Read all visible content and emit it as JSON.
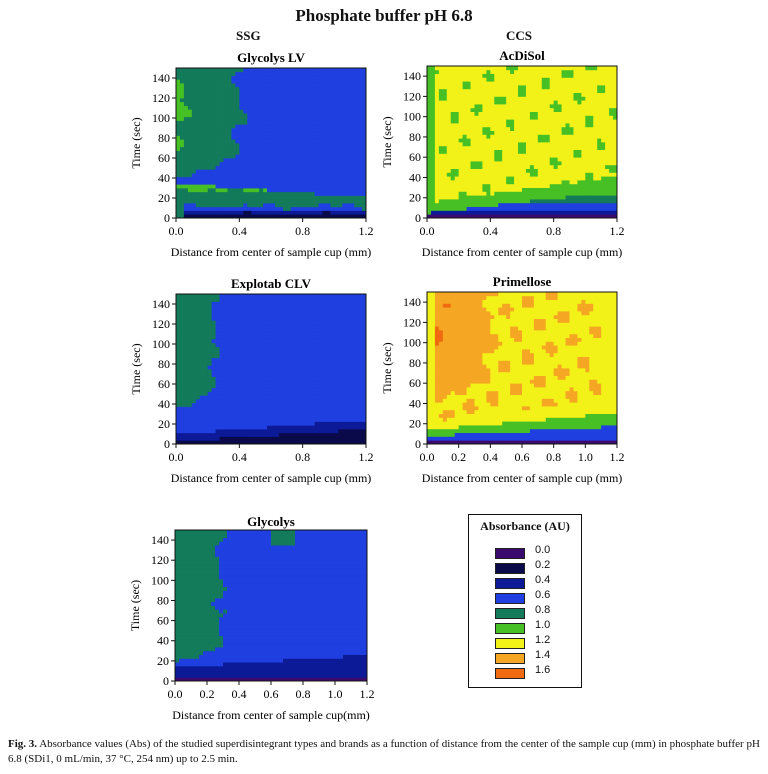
{
  "figure": {
    "title": "Phosphate buffer pH 6.8",
    "group_ssg": "SSG",
    "group_ccs": "CCS",
    "caption_label": "Fig. 3.",
    "caption_text": "Absorbance values (Abs) of the studied superdisintegrant types and brands as a function of distance from the center of the sample cup (mm) in phosphate buffer pH 6.8 (SDi1, 0 mL/min, 37 °C, 254 nm) up to 2.5 min."
  },
  "legend": {
    "title": "Absorbance (AU)",
    "levels": [
      {
        "label": "0.0",
        "color": "#3a0a6e"
      },
      {
        "label": "0.2",
        "color": "#0a0a4a"
      },
      {
        "label": "0.4",
        "color": "#0c1a98"
      },
      {
        "label": "0.6",
        "color": "#1f3fe0"
      },
      {
        "label": "0.8",
        "color": "#137a5a"
      },
      {
        "label": "1.0",
        "color": "#47c025"
      },
      {
        "label": "1.2",
        "color": "#f2f218"
      },
      {
        "label": "1.4",
        "color": "#f5a623"
      },
      {
        "label": "1.6",
        "color": "#f06a10"
      }
    ]
  },
  "chart_data": [
    {
      "type": "heatmap",
      "title": "Glycolys LV",
      "xlabel": "Distance from center of sample cup (mm)",
      "ylabel": "Time (sec)",
      "xlim": [
        0.0,
        1.2
      ],
      "ylim": [
        0,
        150
      ],
      "xticks": [
        "0.0",
        "0.4",
        "0.8",
        "1.2"
      ],
      "yticks": [
        "0",
        "20",
        "40",
        "60",
        "80",
        "100",
        "120",
        "140"
      ],
      "model": "ssg_lv"
    },
    {
      "type": "heatmap",
      "title": "AcDiSol",
      "xlabel": "Distance from center of sample cup (mm)",
      "ylabel": "Time (sec)",
      "xlim": [
        0.0,
        1.2
      ],
      "ylim": [
        0,
        150
      ],
      "xticks": [
        "0.0",
        "0.4",
        "0.8",
        "1.2"
      ],
      "yticks": [
        "0",
        "20",
        "40",
        "60",
        "80",
        "100",
        "120",
        "140"
      ],
      "model": "acdisol"
    },
    {
      "type": "heatmap",
      "title": "Explotab CLV",
      "xlabel": "Distance from center of sample cup (mm)",
      "ylabel": "Time (sec)",
      "xlim": [
        0.0,
        1.2
      ],
      "ylim": [
        0,
        150
      ],
      "xticks": [
        "0.0",
        "0.4",
        "0.8",
        "1.2"
      ],
      "yticks": [
        "0",
        "20",
        "40",
        "60",
        "80",
        "100",
        "120",
        "140"
      ],
      "model": "explotab"
    },
    {
      "type": "heatmap",
      "title": "Primellose",
      "xlabel": "Distance from center of sample cup (mm)",
      "ylabel": "Time (sec)",
      "xlim": [
        0.0,
        1.2
      ],
      "ylim": [
        0,
        150
      ],
      "xticks": [
        "0.0",
        "0.2",
        "0.4",
        "0.6",
        "0.8",
        "1.0",
        "1.2"
      ],
      "yticks": [
        "0",
        "20",
        "40",
        "60",
        "80",
        "100",
        "120",
        "140"
      ],
      "model": "primellose"
    },
    {
      "type": "heatmap",
      "title": "Glycolys",
      "xlabel": "Distance from center of sample cup(mm)",
      "ylabel": "Time (sec)",
      "xlim": [
        0.0,
        1.2
      ],
      "ylim": [
        0,
        150
      ],
      "xticks": [
        "0.0",
        "0.2",
        "0.4",
        "0.6",
        "0.8",
        "1.0",
        "1.2"
      ],
      "yticks": [
        "0",
        "20",
        "40",
        "60",
        "80",
        "100",
        "120",
        "140"
      ],
      "model": "glycolys"
    }
  ]
}
